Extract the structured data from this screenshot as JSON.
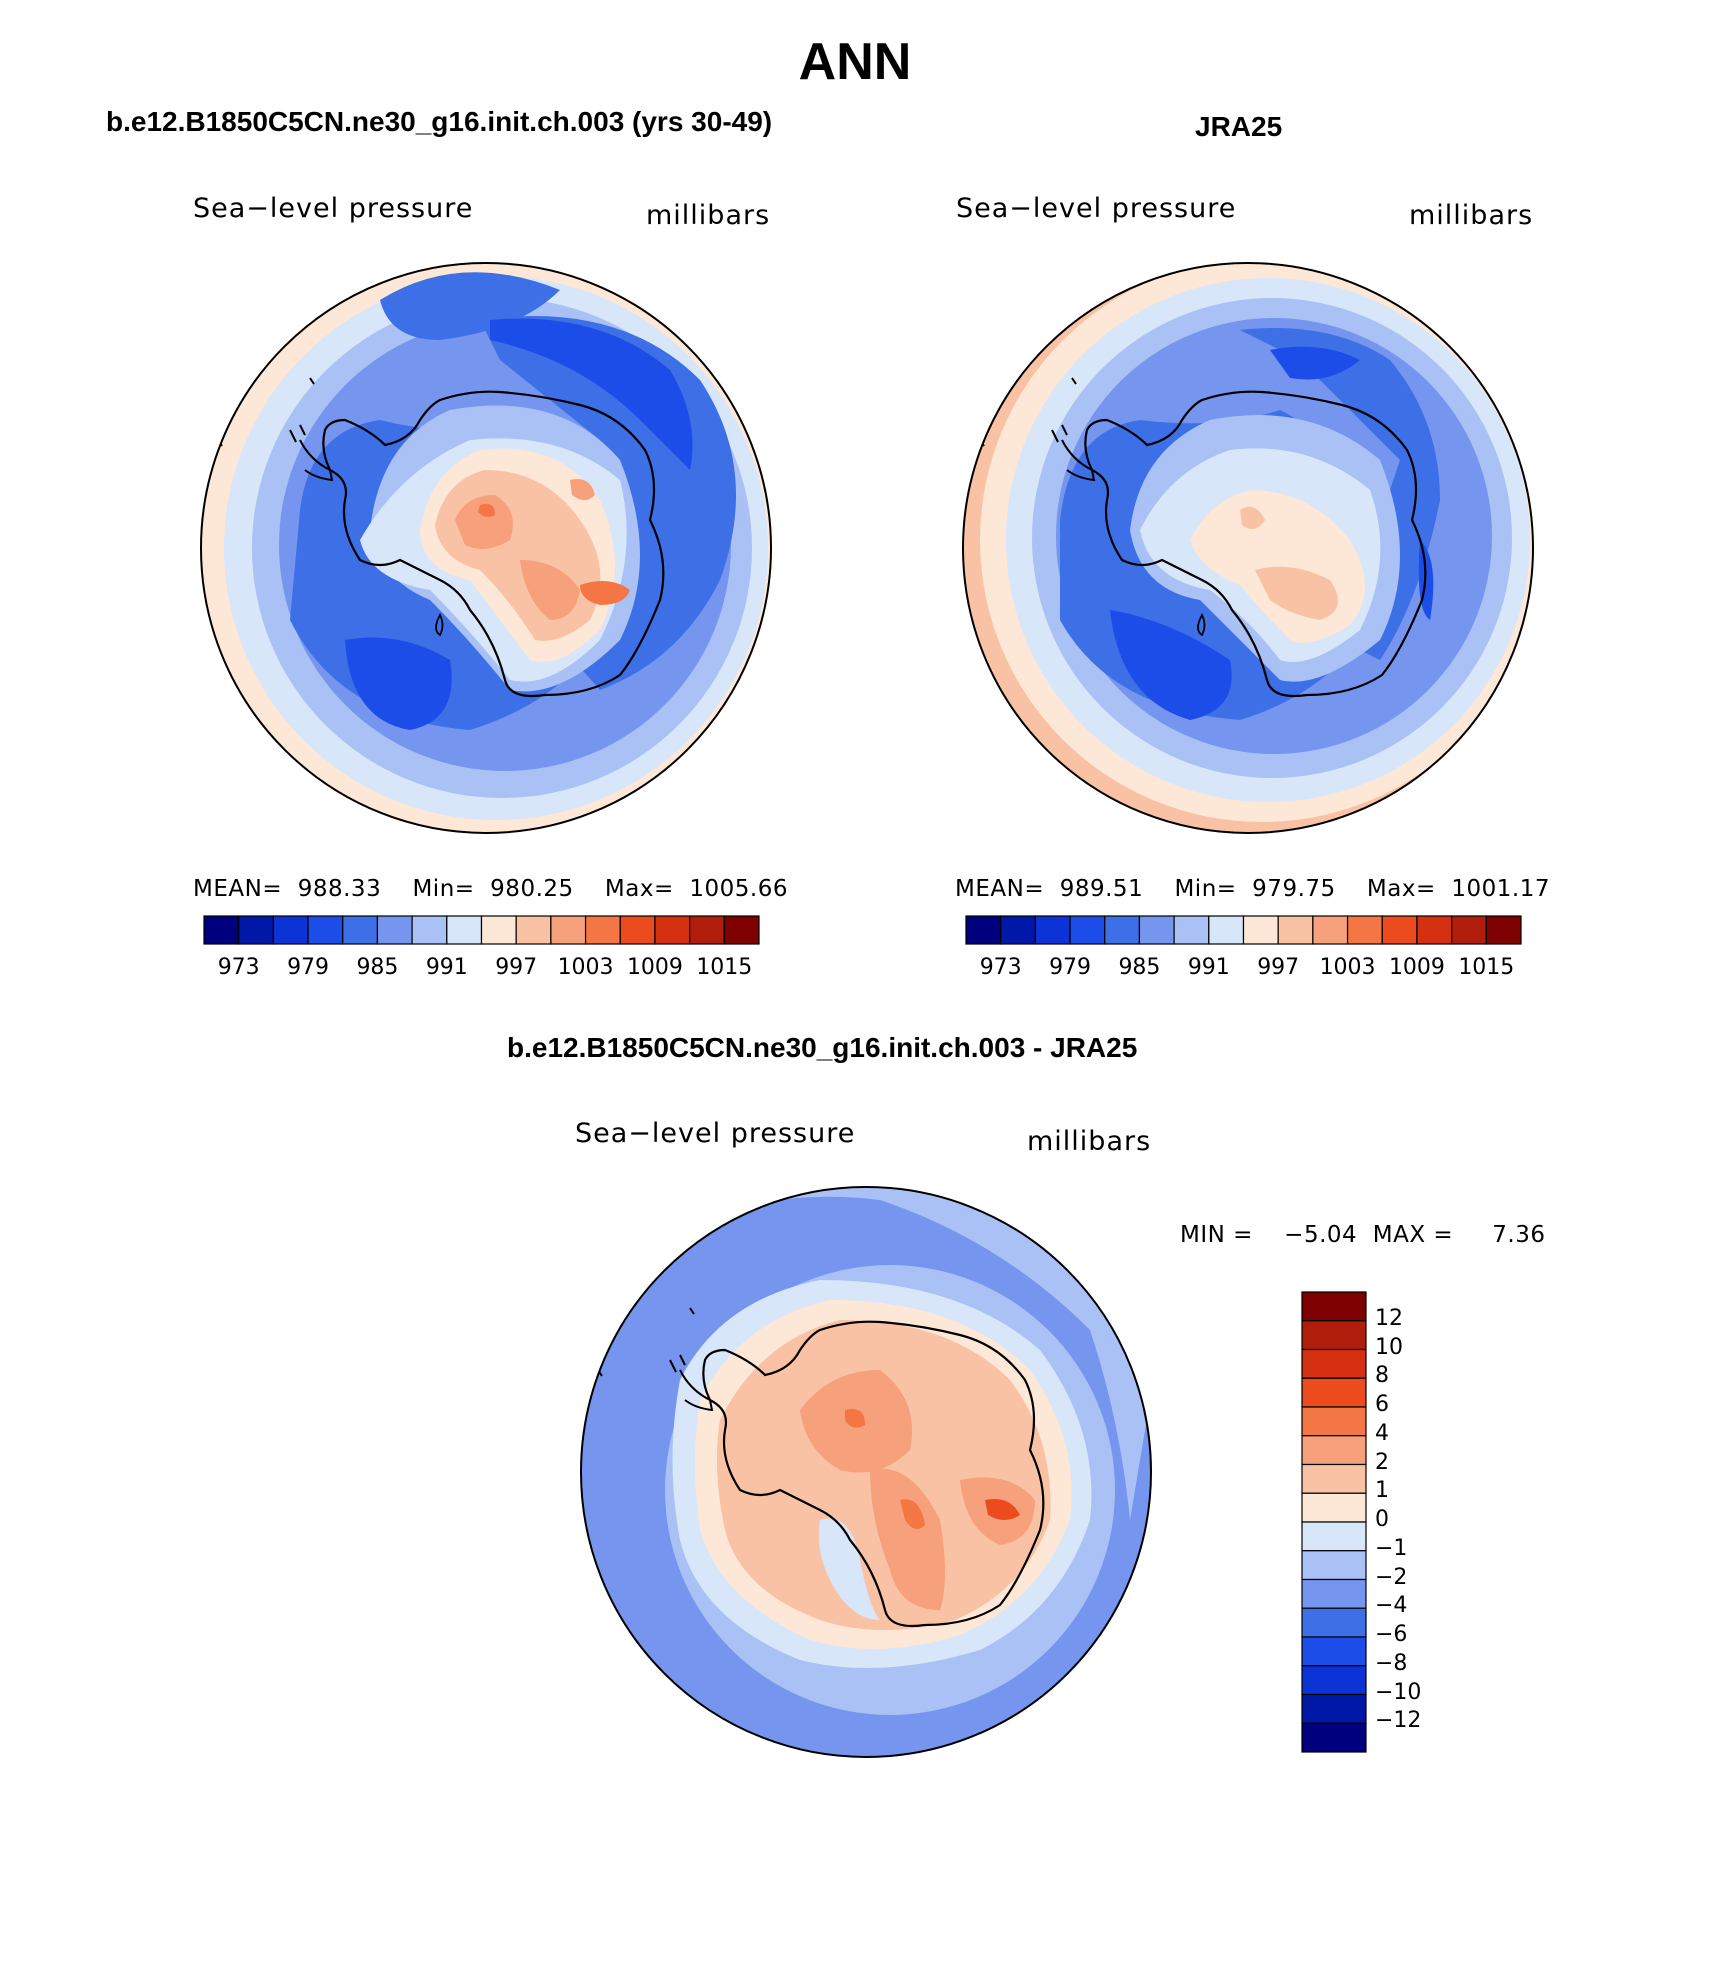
{
  "title": "ANN",
  "colors": {
    "abs_scale": [
      "#00007f",
      "#0018a8",
      "#0b33d6",
      "#1d4de8",
      "#3d6fe6",
      "#7595ee",
      "#a9c1f5",
      "#d8e6fa",
      "#fde7d6",
      "#f9c2a4",
      "#f7a07c",
      "#f47644",
      "#ec4b1e",
      "#d5300f",
      "#b01d0a",
      "#7f0000"
    ],
    "diff_scale": [
      "#00007f",
      "#0018a8",
      "#0b33d6",
      "#1d4de8",
      "#3d6fe6",
      "#7595ee",
      "#a9c1f5",
      "#d8e6fa",
      "#fde7d6",
      "#f9c2a4",
      "#f7a07c",
      "#f47644",
      "#ec4b1e",
      "#d5300f",
      "#b01d0a",
      "#7f0000"
    ]
  },
  "panels": [
    {
      "id": "model",
      "title": "b.e12.B1850C5CN.ne30_g16.init.ch.003 (yrs 30-49)",
      "variable": "Sea−level pressure",
      "units": "millibars",
      "mean_label": "MEAN=",
      "mean": "988.33",
      "min_label": "Min=",
      "min": "980.25",
      "max_label": "Max=",
      "max": "1005.66",
      "ticks": [
        "973",
        "979",
        "985",
        "991",
        "997",
        "1003",
        "1009",
        "1015"
      ]
    },
    {
      "id": "obs",
      "title": "JRA25",
      "variable": "Sea−level pressure",
      "units": "millibars",
      "mean_label": "MEAN=",
      "mean": "989.51",
      "min_label": "Min=",
      "min": "979.75",
      "max_label": "Max=",
      "max": "1001.17",
      "ticks": [
        "973",
        "979",
        "985",
        "991",
        "997",
        "1003",
        "1009",
        "1015"
      ]
    }
  ],
  "diff": {
    "title": "b.e12.B1850C5CN.ne30_g16.init.ch.003 - JRA25",
    "variable": "Sea−level pressure",
    "units": "millibars",
    "min_label": "MIN =",
    "min": "−5.04",
    "max_label": "MAX =",
    "max": "7.36",
    "ticks": [
      "12",
      "10",
      "8",
      "6",
      "4",
      "2",
      "1",
      "0",
      "−1",
      "−2",
      "−4",
      "−6",
      "−8",
      "−10",
      "−12"
    ]
  }
}
